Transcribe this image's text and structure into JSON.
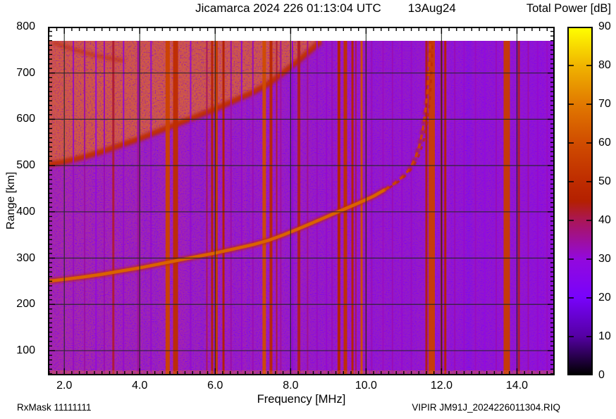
{
  "header": {
    "title": "Jicamarca 2024 226 01:13:04 UTC",
    "date": "13Aug24",
    "colorbar_title": "Total Power [dB]"
  },
  "footer": {
    "left": "RxMask 11111111",
    "right": "VIPIR  JM91J_2024226011304.RIQ"
  },
  "chart_data": {
    "type": "heatmap",
    "subtype": "ionogram",
    "title": "Jicamarca 2024 226 01:13:04 UTC",
    "date_label": "13Aug24",
    "xlabel": "Frequency [MHz]",
    "ylabel": "Range [km]",
    "colorbar_label": "Total Power [dB]",
    "xlim": [
      1.566,
      15.0
    ],
    "ylim": [
      46.6,
      800
    ],
    "grid": true,
    "x_tick_values": [
      2,
      4,
      6,
      8,
      10,
      12,
      14
    ],
    "x_tick_labels": [
      "2.0",
      "4.0",
      "6.0",
      "8.0",
      "10.0",
      "12.0",
      "14.0"
    ],
    "x_minor_step": 0.2,
    "y_tick_values": [
      100,
      200,
      300,
      400,
      500,
      600,
      700,
      800
    ],
    "y_minor_step": 10,
    "colorbar": {
      "min": 0,
      "max": 90,
      "tick_step": 10,
      "tick_labels": [
        0,
        10,
        20,
        30,
        40,
        50,
        60,
        70,
        80,
        90
      ],
      "palette_stops": [
        [
          0,
          "#000000"
        ],
        [
          10,
          "#5500a4"
        ],
        [
          20,
          "#7803fb"
        ],
        [
          30,
          "#9309dd"
        ],
        [
          40,
          "#aa1657"
        ],
        [
          45,
          "#b42000"
        ],
        [
          50,
          "#be2c00"
        ],
        [
          60,
          "#d04c00"
        ],
        [
          70,
          "#e17800"
        ],
        [
          80,
          "#f0b300"
        ],
        [
          90,
          "#ffff00"
        ]
      ]
    },
    "background_db": 23,
    "data_top_km": 770,
    "echo_trace_o_mode": [
      [
        1.566,
        250
      ],
      [
        2.0,
        254
      ],
      [
        2.5,
        259
      ],
      [
        3.0,
        265
      ],
      [
        3.5,
        272
      ],
      [
        4.0,
        279
      ],
      [
        4.5,
        287
      ],
      [
        5.0,
        295
      ],
      [
        5.5,
        303
      ],
      [
        6.0,
        311
      ],
      [
        6.5,
        320
      ],
      [
        7.0,
        329
      ],
      [
        7.4,
        338
      ],
      [
        7.8,
        350
      ],
      [
        8.2,
        363
      ],
      [
        8.6,
        377
      ],
      [
        9.0,
        391
      ],
      [
        9.4,
        405
      ],
      [
        9.8,
        419
      ],
      [
        10.2,
        434
      ],
      [
        10.5,
        448
      ]
    ],
    "echo_trace_steep": [
      [
        10.5,
        448
      ],
      [
        10.75,
        461
      ],
      [
        11.0,
        478
      ],
      [
        11.15,
        492
      ],
      [
        11.3,
        515
      ],
      [
        11.42,
        545
      ],
      [
        11.5,
        575
      ],
      [
        11.57,
        615
      ],
      [
        11.63,
        660
      ],
      [
        11.67,
        710
      ],
      [
        11.7,
        768
      ]
    ],
    "echo_trace_x_mode": [
      [
        10.62,
        452
      ],
      [
        10.87,
        466
      ],
      [
        11.1,
        483
      ],
      [
        11.27,
        500
      ],
      [
        11.42,
        525
      ],
      [
        11.54,
        557
      ],
      [
        11.62,
        592
      ],
      [
        11.69,
        640
      ],
      [
        11.73,
        695
      ],
      [
        11.76,
        760
      ]
    ],
    "second_hop_trace": [
      [
        1.566,
        502
      ],
      [
        2.0,
        508
      ],
      [
        2.5,
        518
      ],
      [
        3.0,
        530
      ],
      [
        3.5,
        544
      ],
      [
        4.0,
        558
      ],
      [
        4.5,
        574
      ],
      [
        5.0,
        590
      ],
      [
        5.5,
        606
      ],
      [
        6.0,
        622
      ],
      [
        6.5,
        640
      ],
      [
        7.0,
        658
      ],
      [
        7.4,
        676
      ],
      [
        7.8,
        700
      ],
      [
        8.2,
        726
      ],
      [
        8.6,
        754
      ],
      [
        8.8,
        768
      ]
    ],
    "top_spread_streak": [
      [
        1.7,
        766
      ],
      [
        2.2,
        752
      ],
      [
        2.8,
        738
      ],
      [
        3.6,
        726
      ]
    ],
    "spread_region_top_f": 10.3,
    "trace_db": 65,
    "second_hop_db": 48,
    "rfi_stripes": [
      [
        2.24,
        2,
        32
      ],
      [
        2.54,
        2,
        34
      ],
      [
        2.84,
        2,
        30
      ],
      [
        3.06,
        2,
        33
      ],
      [
        3.3,
        3,
        42
      ],
      [
        3.57,
        2,
        31
      ],
      [
        3.96,
        3,
        35
      ],
      [
        4.3,
        2,
        31
      ],
      [
        4.74,
        6,
        57
      ],
      [
        4.95,
        7,
        50
      ],
      [
        5.35,
        2,
        31
      ],
      [
        5.78,
        2,
        40
      ],
      [
        5.92,
        3,
        46
      ],
      [
        6.03,
        4,
        54
      ],
      [
        6.22,
        3,
        45
      ],
      [
        6.42,
        2,
        34
      ],
      [
        6.7,
        2,
        31
      ],
      [
        7.0,
        2,
        33
      ],
      [
        7.3,
        5,
        60
      ],
      [
        7.48,
        4,
        48
      ],
      [
        7.63,
        2,
        42
      ],
      [
        7.74,
        2,
        35
      ],
      [
        8.05,
        2,
        31
      ],
      [
        8.22,
        4,
        43
      ],
      [
        8.45,
        2,
        36
      ],
      [
        8.7,
        2,
        32
      ],
      [
        8.95,
        2,
        31
      ],
      [
        9.1,
        2,
        33
      ],
      [
        9.28,
        4,
        46
      ],
      [
        9.45,
        5,
        51
      ],
      [
        9.64,
        3,
        46
      ],
      [
        9.73,
        2,
        40
      ],
      [
        9.88,
        3,
        61
      ],
      [
        10.0,
        2,
        38
      ],
      [
        10.15,
        2,
        33
      ],
      [
        10.45,
        2,
        32
      ],
      [
        10.7,
        2,
        33
      ],
      [
        10.95,
        2,
        31
      ],
      [
        11.2,
        2,
        32
      ],
      [
        11.6,
        3,
        44
      ],
      [
        11.74,
        9,
        56
      ],
      [
        12.0,
        3,
        42
      ],
      [
        12.1,
        3,
        46
      ],
      [
        12.35,
        2,
        33
      ],
      [
        12.6,
        2,
        31
      ],
      [
        12.9,
        2,
        32
      ],
      [
        13.15,
        2,
        30
      ],
      [
        13.45,
        2,
        33
      ],
      [
        13.73,
        9,
        55
      ],
      [
        14.05,
        3,
        42
      ],
      [
        14.3,
        2,
        34
      ],
      [
        14.55,
        2,
        31
      ],
      [
        14.8,
        2,
        32
      ]
    ],
    "rfi_bands": [
      [
        1.566,
        2.15,
        27
      ],
      [
        2.2,
        3.9,
        26
      ],
      [
        4.55,
        5.2,
        27
      ],
      [
        5.7,
        6.5,
        26
      ],
      [
        7.2,
        7.85,
        26
      ],
      [
        8.1,
        9.2,
        26
      ],
      [
        9.2,
        10.1,
        27
      ],
      [
        10.35,
        11.45,
        25
      ],
      [
        11.55,
        12.25,
        26
      ],
      [
        12.8,
        13.55,
        25
      ],
      [
        13.6,
        14.25,
        26
      ],
      [
        14.3,
        15.0,
        25
      ]
    ]
  }
}
